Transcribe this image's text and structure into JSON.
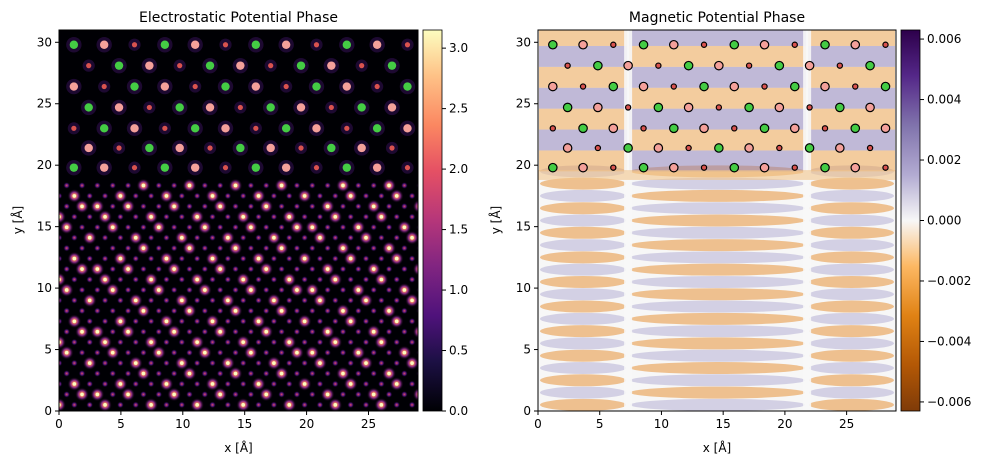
{
  "chart_data": [
    {
      "type": "heatmap",
      "title": "Electrostatic Potential Phase",
      "xlabel": "x [Å]",
      "ylabel": "y [Å]",
      "xlim": [
        0,
        29
      ],
      "ylim": [
        0,
        31
      ],
      "xticks": [
        0,
        5,
        10,
        15,
        20,
        25
      ],
      "yticks": [
        0,
        5,
        10,
        15,
        20,
        25,
        30
      ],
      "colormap": "magma",
      "colorbar": {
        "min": 0.0,
        "max": 3.15,
        "ticks": [
          "0.0",
          "0.5",
          "1.0",
          "1.5",
          "2.0",
          "2.5",
          "3.0"
        ],
        "tick_values": [
          0,
          0.5,
          1,
          1.5,
          2,
          2.5,
          3
        ]
      },
      "overlay_rows_y": [
        19.8,
        21.4,
        23.0,
        24.7,
        26.4,
        28.1,
        29.8
      ],
      "lower_region_y_max": 19,
      "atom_colors": {
        "A": "#44cc44",
        "B": "#f4a09a",
        "C": "#d9534f"
      }
    },
    {
      "type": "heatmap",
      "title": "Magnetic Potential Phase",
      "xlabel": "x [Å]",
      "ylabel": "y [Å]",
      "xlim": [
        0,
        29
      ],
      "ylim": [
        0,
        31
      ],
      "xticks": [
        0,
        5,
        10,
        15,
        20,
        25
      ],
      "yticks": [
        0,
        5,
        10,
        15,
        20,
        25,
        30
      ],
      "colormap": "PuOr",
      "colorbar": {
        "min": -0.0063,
        "max": 0.0063,
        "ticks": [
          "−0.006",
          "−0.004",
          "−0.002",
          "0.000",
          "0.002",
          "0.004",
          "0.006"
        ],
        "tick_values": [
          -0.006,
          -0.004,
          -0.002,
          0,
          0.002,
          0.004,
          0.006
        ]
      },
      "stripe_boundaries_x": [
        7.3,
        21.8
      ],
      "atom_colors": {
        "A": "#44cc44",
        "B": "#f4a09a",
        "C": "#d9534f"
      }
    }
  ]
}
